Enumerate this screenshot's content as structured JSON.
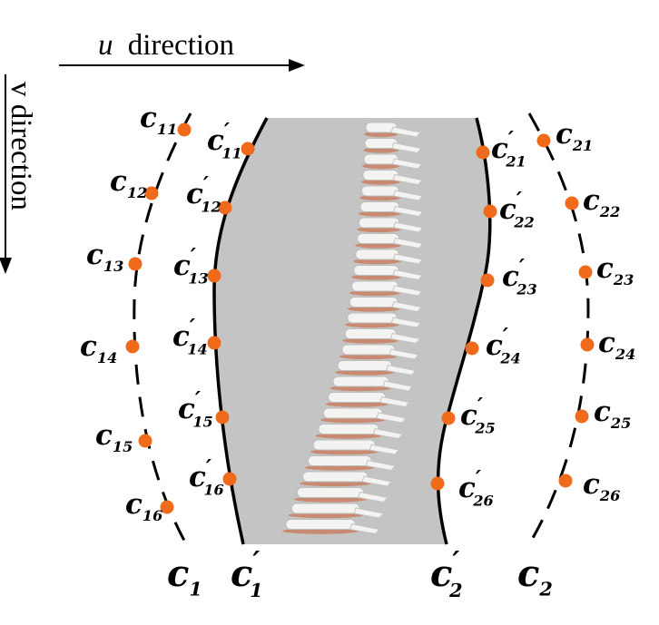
{
  "axes": {
    "u_symbol": "u",
    "u_word": "direction",
    "v_text": "v direction"
  },
  "colors": {
    "point": "#f06a1c",
    "region": "#c4c4c4",
    "curve": "#000000",
    "disc": "#c98a72",
    "bone": "#f3f3f1"
  },
  "curves": {
    "c1": {
      "base": "c",
      "sub": "1"
    },
    "c1p": {
      "base": "c",
      "prime": "′",
      "sub": "1"
    },
    "c2p": {
      "base": "c",
      "prime": "′",
      "sub": "2"
    },
    "c2": {
      "base": "c",
      "sub": "2"
    }
  },
  "points": {
    "left_outer": [
      {
        "base": "c",
        "sub": "11"
      },
      {
        "base": "c",
        "sub": "12"
      },
      {
        "base": "c",
        "sub": "13"
      },
      {
        "base": "c",
        "sub": "14"
      },
      {
        "base": "c",
        "sub": "15"
      },
      {
        "base": "c",
        "sub": "16"
      }
    ],
    "left_inner": [
      {
        "base": "c",
        "prime": "′",
        "sub": "11"
      },
      {
        "base": "c",
        "prime": "′",
        "sub": "12"
      },
      {
        "base": "c",
        "prime": "′",
        "sub": "13"
      },
      {
        "base": "c",
        "prime": "′",
        "sub": "14"
      },
      {
        "base": "c",
        "prime": "′",
        "sub": "15"
      },
      {
        "base": "c",
        "prime": "′",
        "sub": "16"
      }
    ],
    "right_inner": [
      {
        "base": "c",
        "prime": "′",
        "sub": "21"
      },
      {
        "base": "c",
        "prime": "′",
        "sub": "22"
      },
      {
        "base": "c",
        "prime": "′",
        "sub": "23"
      },
      {
        "base": "c",
        "prime": "′",
        "sub": "24"
      },
      {
        "base": "c",
        "prime": "′",
        "sub": "25"
      },
      {
        "base": "c",
        "prime": "′",
        "sub": "26"
      }
    ],
    "right_outer": [
      {
        "base": "c",
        "sub": "21"
      },
      {
        "base": "c",
        "sub": "22"
      },
      {
        "base": "c",
        "sub": "23"
      },
      {
        "base": "c",
        "sub": "24"
      },
      {
        "base": "c",
        "sub": "25"
      },
      {
        "base": "c",
        "sub": "26"
      }
    ]
  }
}
